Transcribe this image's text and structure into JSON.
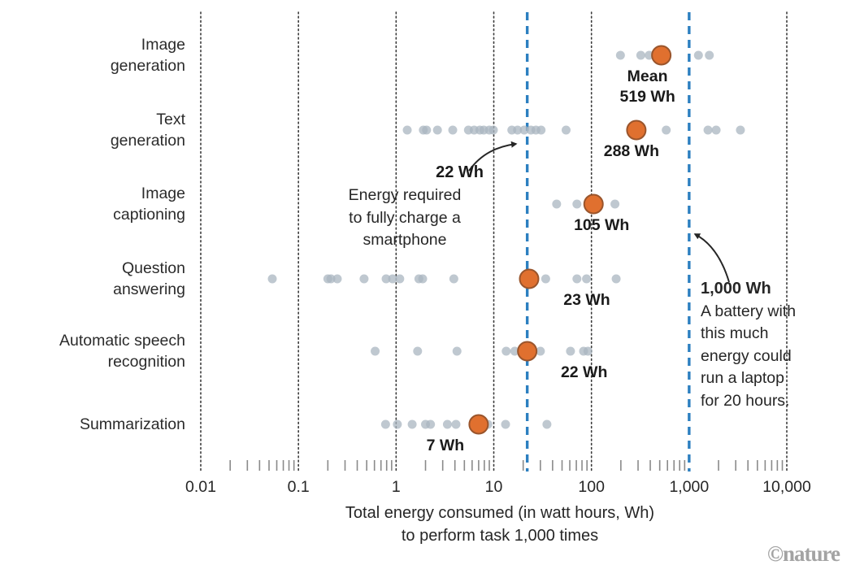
{
  "chart_data": {
    "type": "scatter",
    "x_scale": "log",
    "xlim": [
      0.01,
      10000
    ],
    "grid": "vertical-dotted",
    "x_ticks": [
      0.01,
      0.1,
      1,
      10,
      100,
      1000,
      10000
    ],
    "x_tick_labels": [
      "0.01",
      "0.1",
      "1",
      "10",
      "100",
      "1,000",
      "10,000"
    ],
    "series": [
      {
        "name": "Image generation",
        "label_lines": [
          "Image",
          "generation"
        ],
        "mean": 519,
        "mean_label_lines": [
          "Mean",
          "519 Wh"
        ],
        "points": [
          198,
          320,
          390,
          1245,
          1610
        ]
      },
      {
        "name": "Text generation",
        "label_lines": [
          "Text",
          "generation"
        ],
        "mean": 288,
        "mean_label_lines": [
          "288 Wh"
        ],
        "points": [
          1.3,
          1.9,
          2.05,
          2.65,
          3.8,
          5.5,
          6.3,
          7.2,
          7.9,
          9.0,
          9.9,
          15.3,
          17.5,
          20.5,
          24,
          27,
          30.5,
          55,
          583,
          1560,
          1890,
          3350
        ]
      },
      {
        "name": "Image captioning",
        "label_lines": [
          "Image",
          "captioning"
        ],
        "mean": 105,
        "mean_label_lines": [
          "105 Wh"
        ],
        "points": [
          44,
          71,
          174
        ]
      },
      {
        "name": "Question answering",
        "label_lines": [
          "Question",
          "answering"
        ],
        "mean": 23,
        "mean_label_lines": [
          "23 Wh"
        ],
        "points": [
          0.054,
          0.2,
          0.215,
          0.25,
          0.47,
          0.79,
          0.92,
          1.09,
          1.71,
          1.87,
          3.9,
          34,
          71,
          89,
          179
        ]
      },
      {
        "name": "Automatic speech recognition",
        "label_lines": [
          "Automatic speech",
          "recognition"
        ],
        "mean": 22,
        "mean_label_lines": [
          "22 Wh"
        ],
        "points": [
          0.61,
          1.66,
          4.2,
          13.4,
          16.4,
          30,
          61,
          83,
          92
        ]
      },
      {
        "name": "Summarization",
        "label_lines": [
          "Summarization"
        ],
        "mean": 7,
        "mean_label_lines": [
          "7 Wh"
        ],
        "points": [
          0.78,
          1.03,
          1.46,
          2.0,
          2.25,
          3.35,
          4.1,
          8.7,
          13.2,
          35
        ]
      }
    ],
    "reference_lines": [
      {
        "value": 22,
        "label": "22 Wh"
      },
      {
        "value": 1000,
        "label": "1,000 Wh"
      }
    ]
  },
  "axis": {
    "title_line1": "Total energy consumed (in watt hours, Wh)",
    "title_line2": "to perform task 1,000 times"
  },
  "annotations": {
    "smartphone": {
      "title": "22 Wh",
      "lines": [
        "Energy required",
        "to fully charge a",
        "smartphone"
      ],
      "points_to_value": 22
    },
    "laptop": {
      "title": "1,000 Wh",
      "lines": [
        "A battery with",
        "this much",
        "energy could",
        "run a laptop",
        "for 20 hours."
      ],
      "points_to_value": 1000
    }
  },
  "branding": {
    "watermark": "©nature"
  },
  "colors": {
    "mean_dot": "#e0702f",
    "mean_dot_outline": "#9a552c",
    "data_dot": "#aab5c0",
    "reference_line": "#2c7fc0",
    "grid_line": "#3a3a3a",
    "minor_tick": "#8a8a8a",
    "text": "#262626",
    "watermark": "#a3a3a3"
  }
}
